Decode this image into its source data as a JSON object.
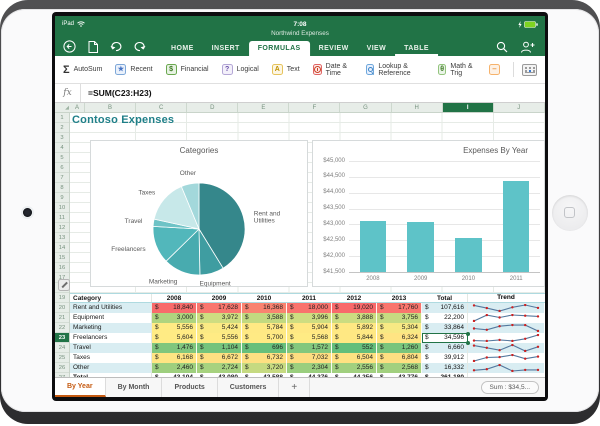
{
  "colors": {
    "excel_green": "#217346",
    "heat_min": "#63BE7B",
    "heat_mid": "#FFEB84",
    "heat_max": "#F8696B",
    "bar_fill": "#5ec3c8",
    "spark_line": "#54799e",
    "spark_dot": "#cc2222",
    "band_fill": "#d9edf2",
    "pie_colors": [
      "#35878b",
      "#3f9da1",
      "#48abaf",
      "#52b7bb",
      "#6ec3c6",
      "#c7e8e9",
      "#a3d8db"
    ]
  },
  "status": {
    "carrier": "iPad",
    "time": "7:08"
  },
  "titlebar": {
    "document_title": "Northwind Expenses"
  },
  "ribbon": {
    "tabs": [
      {
        "label": "HOME",
        "state": "normal"
      },
      {
        "label": "INSERT",
        "state": "normal"
      },
      {
        "label": "FORMULAS",
        "state": "active"
      },
      {
        "label": "REVIEW",
        "state": "normal"
      },
      {
        "label": "VIEW",
        "state": "normal"
      },
      {
        "label": "TABLE",
        "state": "contextual"
      }
    ],
    "tools": [
      {
        "label": "AutoSum",
        "icon": "sigma-icon",
        "glyph": "Σ",
        "boxed": false,
        "border": "",
        "bg": "",
        "fg": "#333333"
      },
      {
        "label": "Recent",
        "icon": "star-icon",
        "glyph": "★",
        "boxed": true,
        "border": "#7da7d8",
        "bg": "#eaf1fb",
        "fg": "#4472c4"
      },
      {
        "label": "Financial",
        "icon": "money-icon",
        "glyph": "$",
        "boxed": true,
        "border": "#6aa84f",
        "bg": "#e7f2e3",
        "fg": "#38761d"
      },
      {
        "label": "Logical",
        "icon": "question-icon",
        "glyph": "?",
        "boxed": true,
        "border": "#b4a7d6",
        "bg": "#f3f0fa",
        "fg": "#674ea7"
      },
      {
        "label": "Text",
        "icon": "letter-a-icon",
        "glyph": "A",
        "boxed": true,
        "border": "#e6c35c",
        "bg": "#fdf6e3",
        "fg": "#bf9000"
      },
      {
        "label": "Date & Time",
        "icon": "clock-icon",
        "glyph": "",
        "boxed": true,
        "border": "#e06666",
        "bg": "#fdecea",
        "fg": "#cc4125"
      },
      {
        "label": "Lookup & Reference",
        "icon": "magnifier-icon",
        "glyph": "",
        "boxed": true,
        "border": "#6fa8dc",
        "bg": "#e8f0fe",
        "fg": "#3d85c6"
      },
      {
        "label": "Math & Trig",
        "icon": "theta-icon",
        "glyph": "θ",
        "boxed": true,
        "border": "#93c47d",
        "bg": "#eaf4e8",
        "fg": "#38761d"
      },
      {
        "label": "",
        "icon": "more-functions-icon",
        "glyph": "‒",
        "boxed": true,
        "border": "#f6b26b",
        "bg": "#fdf1e5",
        "fg": "#e69138"
      }
    ]
  },
  "formula_bar": {
    "fx_label": "fx",
    "formula": "=SUM(C23:H23)"
  },
  "grid": {
    "column_letters": [
      "A",
      "B",
      "C",
      "D",
      "E",
      "F",
      "G",
      "H",
      "I",
      "J"
    ],
    "selected_column": "I",
    "selected_row": 23,
    "visible_rows": 27,
    "title_cell": "Contoso Expenses",
    "select_all_glyph": "◢"
  },
  "chart_data": [
    {
      "type": "pie",
      "title": "Categories",
      "labels": [
        "Rent and Utilities",
        "Equipment",
        "Marketing",
        "Freelancers",
        "Travel",
        "Taxes",
        "Other"
      ],
      "label_lines": [
        [
          "Rent and",
          "Utilities"
        ],
        [
          "Equipment"
        ],
        [
          "Marketing"
        ],
        [
          "Freelancers"
        ],
        [
          "Travel"
        ],
        [
          "Taxes"
        ],
        [
          "Other"
        ]
      ],
      "values": [
        107616,
        22200,
        33864,
        34596,
        6660,
        39912,
        16332
      ],
      "legend": "none"
    },
    {
      "type": "bar",
      "title": "Expenses By Year",
      "categories": [
        "2008",
        "2009",
        "2010",
        "2011"
      ],
      "values": [
        43104,
        43080,
        42588,
        44376
      ],
      "ylim": [
        41500,
        45000
      ],
      "ytick_step": 500,
      "ytick_prefix": "$",
      "grid": true
    }
  ],
  "table": {
    "headers": [
      "Category",
      "2008",
      "2009",
      "2010",
      "2011",
      "2012",
      "2013",
      "Total",
      "Trend"
    ],
    "rows": [
      {
        "category": "Rent and Utilities",
        "values": [
          18840,
          17628,
          16368,
          18000,
          19020,
          17760
        ],
        "total": "107,616"
      },
      {
        "category": "Equipment",
        "values": [
          3000,
          3972,
          3588,
          3996,
          3888,
          3756
        ],
        "total": "22,200"
      },
      {
        "category": "Marketing",
        "values": [
          5556,
          5424,
          5784,
          5904,
          5892,
          5304
        ],
        "total": "33,864"
      },
      {
        "category": "Freelancers",
        "values": [
          5604,
          5556,
          5700,
          5568,
          5844,
          6324
        ],
        "total": "34,596",
        "selected": true
      },
      {
        "category": "Travel",
        "values": [
          1476,
          1104,
          696,
          1572,
          552,
          1260
        ],
        "total": "6,660"
      },
      {
        "category": "Taxes",
        "values": [
          6168,
          6672,
          6732,
          7032,
          6504,
          6804
        ],
        "total": "39,912"
      },
      {
        "category": "Other",
        "values": [
          2460,
          2724,
          3720,
          2304,
          2556,
          2568
        ],
        "total": "16,332"
      }
    ],
    "total_row": {
      "category": "Total",
      "values": [
        43104,
        43080,
        42588,
        44376,
        44256,
        43776
      ],
      "total": "261,180"
    }
  },
  "sheet_tabs": {
    "tabs": [
      {
        "label": "By Year",
        "active": true
      },
      {
        "label": "By Month",
        "active": false
      },
      {
        "label": "Products",
        "active": false
      },
      {
        "label": "Customers",
        "active": false
      }
    ],
    "add_label": "+",
    "sum_badge": "Sum :  $34,5..."
  }
}
